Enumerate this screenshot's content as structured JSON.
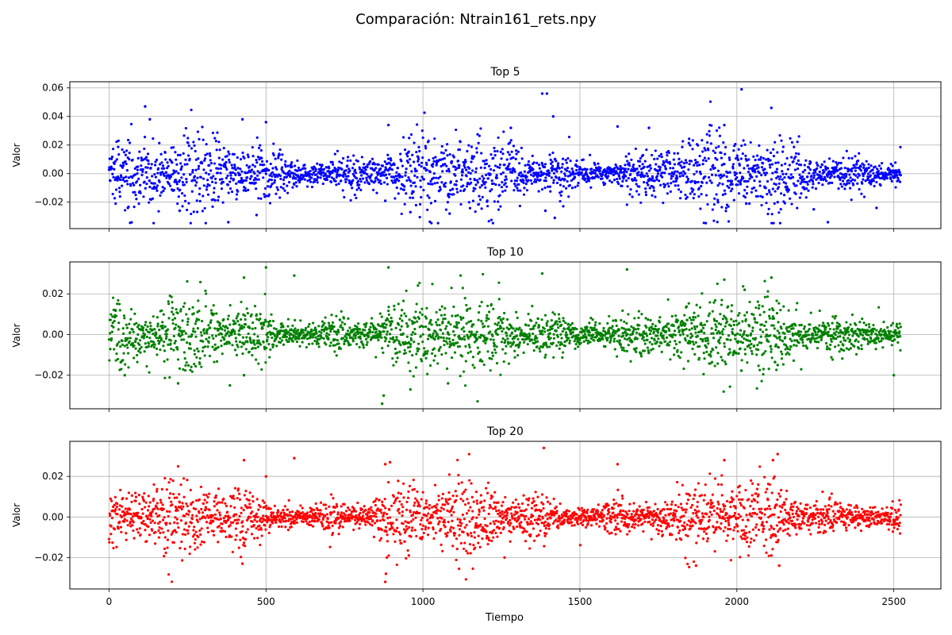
{
  "figure": {
    "title": "Comparación: Ntrain161_rets.npy",
    "xlabel": "Tiempo"
  },
  "chart_data": [
    {
      "type": "scatter",
      "title": "Top 5",
      "ylabel": "Valor",
      "color": "#0000ff",
      "xlim": [
        -125,
        2650
      ],
      "ylim": [
        -0.0385,
        0.0643
      ],
      "xticks": [
        0,
        500,
        1000,
        1500,
        2000,
        2500
      ],
      "yticks": [
        -0.02,
        0.0,
        0.02,
        0.04,
        0.06
      ],
      "ytick_labels": [
        "−0.02",
        "0.00",
        "0.02",
        "0.04",
        "0.06"
      ],
      "show_xtick_labels": false,
      "grid": true,
      "n_points": 2523,
      "noise_sigma": 0.0085,
      "outliers": [
        [
          115,
          0.047
        ],
        [
          130,
          0.038
        ],
        [
          380,
          -0.034
        ],
        [
          425,
          0.038
        ],
        [
          500,
          0.036
        ],
        [
          960,
          -0.027
        ],
        [
          1380,
          0.056
        ],
        [
          1395,
          0.056
        ],
        [
          1415,
          0.04
        ],
        [
          1420,
          -0.031
        ],
        [
          1960,
          0.034
        ],
        [
          2015,
          0.059
        ],
        [
          2110,
          0.046
        ],
        [
          2290,
          -0.034
        ],
        [
          2445,
          -0.024
        ],
        [
          60,
          -0.024
        ],
        [
          225,
          -0.026
        ],
        [
          470,
          -0.029
        ],
        [
          880,
          -0.019
        ],
        [
          1085,
          -0.028
        ],
        [
          1390,
          -0.026
        ],
        [
          1940,
          -0.02
        ],
        [
          2130,
          -0.02
        ],
        [
          2245,
          -0.025
        ],
        [
          1280,
          0.032
        ],
        [
          1620,
          0.033
        ],
        [
          1720,
          0.032
        ],
        [
          890,
          0.034
        ],
        [
          2030,
          -0.021
        ]
      ]
    },
    {
      "type": "scatter",
      "title": "Top 10",
      "ylabel": "Valor",
      "color": "#008000",
      "xlim": [
        -125,
        2650
      ],
      "ylim": [
        -0.0365,
        0.0357
      ],
      "xticks": [
        0,
        500,
        1000,
        1500,
        2000,
        2500
      ],
      "yticks": [
        -0.02,
        0.0,
        0.02
      ],
      "ytick_labels": [
        "−0.02",
        "0.00",
        "0.02"
      ],
      "show_xtick_labels": false,
      "grid": true,
      "n_points": 2523,
      "noise_sigma": 0.0058,
      "outliers": [
        [
          500,
          0.033
        ],
        [
          590,
          0.029
        ],
        [
          890,
          0.033
        ],
        [
          870,
          -0.034
        ],
        [
          875,
          -0.03
        ],
        [
          960,
          -0.027
        ],
        [
          1380,
          0.03
        ],
        [
          1650,
          0.032
        ],
        [
          1120,
          0.029
        ],
        [
          1080,
          -0.024
        ],
        [
          220,
          -0.024
        ],
        [
          385,
          -0.025
        ],
        [
          2025,
          0.022
        ],
        [
          2110,
          0.028
        ],
        [
          2130,
          -0.015
        ],
        [
          2500,
          -0.02
        ],
        [
          1960,
          0.027
        ],
        [
          430,
          0.028
        ],
        [
          50,
          -0.02
        ],
        [
          430,
          -0.02
        ]
      ]
    },
    {
      "type": "scatter",
      "title": "Top 20",
      "ylabel": "Valor",
      "color": "#ff0000",
      "xlabel": "Tiempo",
      "xlim": [
        -125,
        2650
      ],
      "ylim": [
        -0.0355,
        0.0373
      ],
      "xticks": [
        0,
        500,
        1000,
        1500,
        2000,
        2500
      ],
      "xtick_labels": [
        "0",
        "500",
        "1000",
        "1500",
        "2000",
        "2500"
      ],
      "yticks": [
        -0.02,
        0.0,
        0.02
      ],
      "ytick_labels": [
        "−0.02",
        "0.00",
        "0.02"
      ],
      "show_xtick_labels": true,
      "grid": true,
      "n_points": 2523,
      "noise_sigma": 0.0055,
      "outliers": [
        [
          1385,
          0.034
        ],
        [
          2130,
          0.031
        ],
        [
          2115,
          0.028
        ],
        [
          1960,
          0.028
        ],
        [
          430,
          0.028
        ],
        [
          590,
          0.029
        ],
        [
          880,
          -0.032
        ],
        [
          882,
          -0.028
        ],
        [
          885,
          -0.02
        ],
        [
          425,
          -0.023
        ],
        [
          1260,
          -0.02
        ],
        [
          1870,
          -0.024
        ],
        [
          2110,
          -0.019
        ],
        [
          2135,
          -0.024
        ],
        [
          1620,
          0.026
        ],
        [
          500,
          0.02
        ],
        [
          955,
          -0.019
        ],
        [
          880,
          0.026
        ],
        [
          895,
          0.027
        ]
      ]
    }
  ]
}
